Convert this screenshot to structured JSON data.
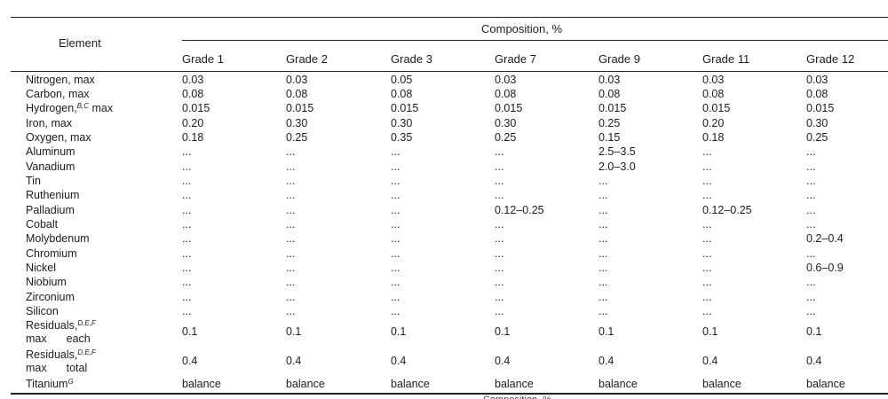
{
  "header": {
    "element": "Element",
    "composition": "Composition, %"
  },
  "grades": [
    "Grade 1",
    "Grade 2",
    "Grade 3",
    "Grade 7",
    "Grade 9",
    "Grade 11",
    "Grade 12"
  ],
  "rows": [
    {
      "label": "Nitrogen, max",
      "sup": "",
      "cont": "",
      "values": [
        "0.03",
        "0.03",
        "0.05",
        "0.03",
        "0.03",
        "0.03",
        "0.03"
      ]
    },
    {
      "label": "Carbon, max",
      "sup": "",
      "cont": "",
      "values": [
        "0.08",
        "0.08",
        "0.08",
        "0.08",
        "0.08",
        "0.08",
        "0.08"
      ]
    },
    {
      "label": "Hydrogen,",
      "sup": "B,C",
      "after": " max",
      "cont": "",
      "values": [
        "0.015",
        "0.015",
        "0.015",
        "0.015",
        "0.015",
        "0.015",
        "0.015"
      ]
    },
    {
      "label": "Iron, max",
      "sup": "",
      "cont": "",
      "values": [
        "0.20",
        "0.30",
        "0.30",
        "0.30",
        "0.25",
        "0.20",
        "0.30"
      ]
    },
    {
      "label": "Oxygen, max",
      "sup": "",
      "cont": "",
      "values": [
        "0.18",
        "0.25",
        "0.35",
        "0.25",
        "0.15",
        "0.18",
        "0.25"
      ]
    },
    {
      "label": "Aluminum",
      "sup": "",
      "cont": "",
      "values": [
        "...",
        "...",
        "...",
        "...",
        "2.5–3.5",
        "...",
        "..."
      ]
    },
    {
      "label": "Vanadium",
      "sup": "",
      "cont": "",
      "values": [
        "...",
        "...",
        "...",
        "...",
        "2.0–3.0",
        "...",
        "..."
      ]
    },
    {
      "label": "Tin",
      "sup": "",
      "cont": "",
      "values": [
        "...",
        "...",
        "...",
        "...",
        "...",
        "...",
        "..."
      ]
    },
    {
      "label": "Ruthenium",
      "sup": "",
      "cont": "",
      "values": [
        "...",
        "...",
        "...",
        "...",
        "...",
        "...",
        "..."
      ]
    },
    {
      "label": "Palladium",
      "sup": "",
      "cont": "",
      "values": [
        "...",
        "...",
        "...",
        "0.12–0.25",
        "...",
        "0.12–0.25",
        "..."
      ]
    },
    {
      "label": "Cobalt",
      "sup": "",
      "cont": "",
      "values": [
        "...",
        "...",
        "...",
        "...",
        "...",
        "...",
        "..."
      ]
    },
    {
      "label": "Molybdenum",
      "sup": "",
      "cont": "",
      "values": [
        "...",
        "...",
        "...",
        "...",
        "...",
        "...",
        "0.2–0.4"
      ]
    },
    {
      "label": "Chromium",
      "sup": "",
      "cont": "",
      "values": [
        "...",
        "...",
        "...",
        "...",
        "...",
        "...",
        "..."
      ]
    },
    {
      "label": "Nickel",
      "sup": "",
      "cont": "",
      "values": [
        "...",
        "...",
        "...",
        "...",
        "...",
        "...",
        "0.6–0.9"
      ]
    },
    {
      "label": "Niobium",
      "sup": "",
      "cont": "",
      "values": [
        "...",
        "...",
        "...",
        "...",
        "...",
        "...",
        "..."
      ]
    },
    {
      "label": "Zirconium",
      "sup": "",
      "cont": "",
      "values": [
        "...",
        "...",
        "...",
        "...",
        "...",
        "...",
        "..."
      ]
    },
    {
      "label": "Silicon",
      "sup": "",
      "cont": "",
      "values": [
        "...",
        "...",
        "...",
        "...",
        "...",
        "...",
        "..."
      ]
    },
    {
      "label": "Residuals,",
      "sup": "D,E,F",
      "cont_a": "max",
      "cont_b": "each",
      "values": [
        "0.1",
        "0.1",
        "0.1",
        "0.1",
        "0.1",
        "0.1",
        "0.1"
      ]
    },
    {
      "label": "Residuals,",
      "sup": "D,E,F",
      "cont_a": "max",
      "cont_b": "total",
      "values": [
        "0.4",
        "0.4",
        "0.4",
        "0.4",
        "0.4",
        "0.4",
        "0.4"
      ]
    },
    {
      "label": "Titanium",
      "sup": "G",
      "cont": "",
      "values": [
        "balance",
        "balance",
        "balance",
        "balance",
        "balance",
        "balance",
        "balance"
      ]
    }
  ],
  "footer_cut": "Composition, %"
}
